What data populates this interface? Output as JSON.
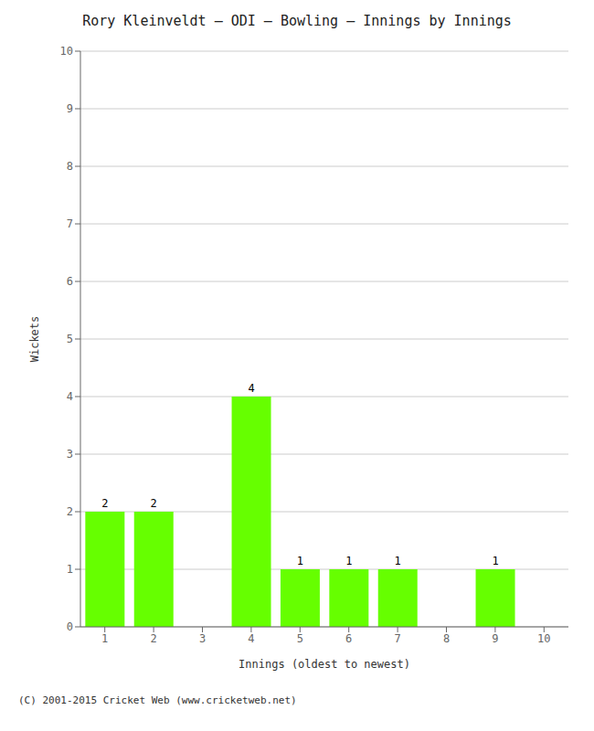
{
  "chart_data": {
    "type": "bar",
    "title": "Rory Kleinveldt – ODI – Bowling – Innings by Innings",
    "x_label": "Innings (oldest to newest)",
    "y_label": "Wickets",
    "categories": [
      1,
      2,
      3,
      4,
      5,
      6,
      7,
      8,
      9,
      10
    ],
    "values": [
      2,
      2,
      0,
      4,
      1,
      1,
      1,
      0,
      1,
      0
    ],
    "color": "#66ff00",
    "ylim": [
      0,
      10
    ],
    "yticks": [
      0,
      1,
      2,
      3,
      4,
      5,
      6,
      7,
      8,
      9,
      10
    ],
    "grid": true,
    "data_labels": true,
    "annotations": [
      "(C) 2001-2015 Cricket Web (www.cricketweb.net)"
    ]
  }
}
